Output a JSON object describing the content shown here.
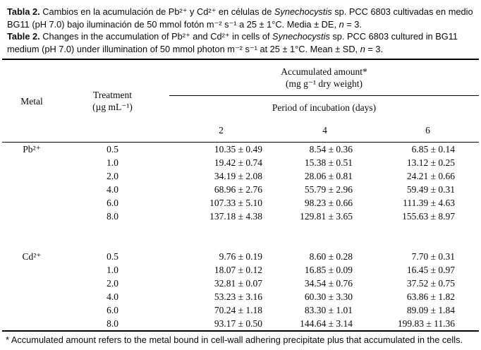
{
  "colors": {
    "background": "#ffffff",
    "text": "#000000",
    "rule": "#000000"
  },
  "caption_es": {
    "segments": [
      {
        "t": "Tabla 2.",
        "s": "b"
      },
      {
        "t": " Cambios en la acumulación de Pb²⁺ y Cd²⁺ en células de ",
        "s": ""
      },
      {
        "t": "Synechocystis",
        "s": "i"
      },
      {
        "t": " sp. PCC 6803 cultivadas en medio BG11 (pH 7.0) bajo iluminación de 50 mmol fotón m⁻² s⁻¹ a 25 ± 1°C. Media ± DE, ",
        "s": ""
      },
      {
        "t": "n",
        "s": "i"
      },
      {
        "t": " = 3.",
        "s": ""
      }
    ]
  },
  "caption_en": {
    "segments": [
      {
        "t": "Table 2.",
        "s": "b"
      },
      {
        "t": " Changes in the accumulation of Pb²⁺ and Cd²⁺ in cells of ",
        "s": ""
      },
      {
        "t": "Synechocystis",
        "s": "i"
      },
      {
        "t": " sp. PCC 6803 cultured in BG11 medium (pH 7.0) under illumination of 50 mmol photon m⁻² s⁻¹ at 25 ± 1°C. Mean ± SD, ",
        "s": ""
      },
      {
        "t": "n",
        "s": "i"
      },
      {
        "t": " = 3.",
        "s": ""
      }
    ]
  },
  "table": {
    "headers": {
      "metal": "Metal",
      "treatment_line1": "Treatment",
      "treatment_line2": "(µg mL⁻¹)",
      "accumulated_line1": "Accumulated amount*",
      "accumulated_line2": "(mg g⁻¹ dry weight)",
      "period": "Period of incubation (days)",
      "days": [
        "2",
        "4",
        "6"
      ]
    },
    "sections": [
      {
        "metal": "Pb²⁺",
        "rows": [
          {
            "treatment": "0.5",
            "d2": "10.35 ± 0.49",
            "d4": "8.54 ± 0.36",
            "d6": "6.85 ± 0.14"
          },
          {
            "treatment": "1.0",
            "d2": "19.42 ± 0.74",
            "d4": "15.38 ± 0.51",
            "d6": "13.12 ± 0.25"
          },
          {
            "treatment": "2.0",
            "d2": "34.19 ± 2.08",
            "d4": "28.06 ± 0.81",
            "d6": "24.21 ± 0.66"
          },
          {
            "treatment": "4.0",
            "d2": "68.96 ± 2.76",
            "d4": "55.79 ± 2.96",
            "d6": "59.49 ± 0.31"
          },
          {
            "treatment": "6.0",
            "d2": "107.33 ± 5.10",
            "d4": "98.23 ± 0.66",
            "d6": "111.39 ± 4.63"
          },
          {
            "treatment": "8.0",
            "d2": "137.18 ± 4.38",
            "d4": "129.81 ± 3.65",
            "d6": "155.63 ± 8.97"
          }
        ]
      },
      {
        "metal": "Cd²⁺",
        "rows": [
          {
            "treatment": "0.5",
            "d2": "9.76 ± 0.19",
            "d4": "8.60 ± 0.28",
            "d6": "7.70 ± 0.31"
          },
          {
            "treatment": "1.0",
            "d2": "18.07 ± 0.12",
            "d4": "16.85 ± 0.09",
            "d6": "16.45 ± 0.97"
          },
          {
            "treatment": "2.0",
            "d2": "32.81 ± 0.07",
            "d4": "34.54 ± 0.76",
            "d6": "37.52 ± 0.75"
          },
          {
            "treatment": "4.0",
            "d2": "53.23 ± 3.16",
            "d4": "60.30 ± 3.30",
            "d6": "63.86 ± 1.82"
          },
          {
            "treatment": "6.0",
            "d2": "70.24 ± 1.18",
            "d4": "83.30 ± 1.01",
            "d6": "89.09 ± 1.84"
          },
          {
            "treatment": "8.0",
            "d2": "93.17 ± 0.50",
            "d4": "144.64 ± 3.14",
            "d6": "199.83 ± 11.36"
          }
        ]
      }
    ]
  },
  "footnote": "* Accumulated amount refers to the metal bound in cell-wall adhering precipitate plus that accumulated in the cells."
}
